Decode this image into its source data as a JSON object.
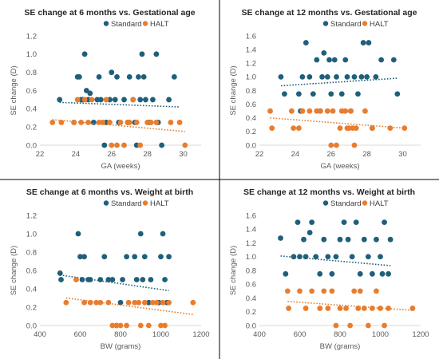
{
  "colors": {
    "standard": "#1f5f7a",
    "halt": "#e87d2f",
    "axis": "#d9d9d9",
    "divider": "#000000"
  },
  "chart_data": [
    {
      "type": "scatter",
      "title": "SE change at 6 months vs. Gestational age",
      "xlabel": "GA (weeks)",
      "ylabel": "SE change (D)",
      "xlim": [
        22,
        31
      ],
      "ylim": [
        0,
        1.2
      ],
      "xticks": [
        "22",
        "24",
        "26",
        "28",
        "30"
      ],
      "yticks": [
        "0.0",
        "0.2",
        "0.4",
        "0.6",
        "0.8",
        "1.0",
        "1.2"
      ],
      "grid": false,
      "legend": "top",
      "series": [
        {
          "name": "Standard",
          "points": [
            [
              23.1,
              0.5
            ],
            [
              23.9,
              0.25
            ],
            [
              24.1,
              0.75
            ],
            [
              24.2,
              0.75
            ],
            [
              24.3,
              0.5
            ],
            [
              24.4,
              0.5
            ],
            [
              24.5,
              1.0
            ],
            [
              24.6,
              0.6
            ],
            [
              24.7,
              0.5
            ],
            [
              24.8,
              0.57
            ],
            [
              25.0,
              0.25
            ],
            [
              25.2,
              0.5
            ],
            [
              25.3,
              0.75
            ],
            [
              25.4,
              0.5
            ],
            [
              25.6,
              0.0
            ],
            [
              25.7,
              0.25
            ],
            [
              25.9,
              0.5
            ],
            [
              26.0,
              0.8
            ],
            [
              26.2,
              0.5
            ],
            [
              26.3,
              0.75
            ],
            [
              26.4,
              0.25
            ],
            [
              26.7,
              0.5
            ],
            [
              26.9,
              0.25
            ],
            [
              27.0,
              0.75
            ],
            [
              27.2,
              0.5
            ],
            [
              27.3,
              0.25
            ],
            [
              27.4,
              0.0
            ],
            [
              27.5,
              0.75
            ],
            [
              27.6,
              0.5
            ],
            [
              27.7,
              1.0
            ],
            [
              27.8,
              0.75
            ],
            [
              27.9,
              0.5
            ],
            [
              28.1,
              0.25
            ],
            [
              28.3,
              0.5
            ],
            [
              28.5,
              1.0
            ],
            [
              28.6,
              0.25
            ],
            [
              28.8,
              0.0
            ],
            [
              29.2,
              0.5
            ],
            [
              29.5,
              0.75
            ]
          ],
          "trend": [
            [
              23.1,
              0.47
            ],
            [
              29.8,
              0.42
            ]
          ]
        },
        {
          "name": "HALT",
          "points": [
            [
              22.7,
              0.25
            ],
            [
              23.2,
              0.25
            ],
            [
              23.9,
              0.25
            ],
            [
              24.1,
              0.5
            ],
            [
              24.3,
              0.25
            ],
            [
              24.5,
              0.5
            ],
            [
              24.7,
              0.25
            ],
            [
              24.9,
              0.5
            ],
            [
              25.3,
              0.25
            ],
            [
              25.5,
              0.25
            ],
            [
              25.7,
              0.5
            ],
            [
              25.9,
              0.25
            ],
            [
              26.0,
              0.0
            ],
            [
              26.3,
              0.0
            ],
            [
              26.5,
              0.25
            ],
            [
              26.7,
              0.0
            ],
            [
              26.9,
              0.25
            ],
            [
              27.0,
              0.25
            ],
            [
              27.2,
              0.5
            ],
            [
              27.4,
              0.25
            ],
            [
              27.6,
              0.0
            ],
            [
              28.0,
              0.25
            ],
            [
              28.2,
              0.25
            ],
            [
              28.5,
              0.25
            ],
            [
              29.3,
              0.25
            ],
            [
              29.8,
              0.25
            ],
            [
              30.1,
              0.0
            ]
          ],
          "trend": [
            [
              22.7,
              0.28
            ],
            [
              30.1,
              0.15
            ]
          ]
        }
      ]
    },
    {
      "type": "scatter",
      "title": "SE change at 12 months vs. Gestational age",
      "xlabel": "GA (weeks)",
      "ylabel": "SE change (D)",
      "xlim": [
        22,
        31
      ],
      "ylim": [
        0,
        1.6
      ],
      "xticks": [
        "22",
        "24",
        "26",
        "28",
        "30"
      ],
      "yticks": [
        "0.0",
        "0.2",
        "0.4",
        "0.6",
        "0.8",
        "1.0",
        "1.2",
        "1.4",
        "1.6"
      ],
      "grid": false,
      "legend": "top",
      "series": [
        {
          "name": "Standard",
          "points": [
            [
              23.2,
              1.0
            ],
            [
              23.4,
              0.75
            ],
            [
              24.2,
              0.75
            ],
            [
              24.3,
              0.5
            ],
            [
              24.4,
              1.0
            ],
            [
              24.6,
              1.5
            ],
            [
              24.8,
              1.0
            ],
            [
              25.0,
              0.75
            ],
            [
              25.2,
              1.25
            ],
            [
              25.4,
              0.5
            ],
            [
              25.5,
              1.0
            ],
            [
              25.6,
              1.35
            ],
            [
              25.8,
              1.0
            ],
            [
              25.9,
              1.25
            ],
            [
              26.0,
              0.75
            ],
            [
              26.2,
              1.25
            ],
            [
              26.3,
              1.0
            ],
            [
              26.6,
              0.75
            ],
            [
              26.8,
              1.25
            ],
            [
              26.9,
              1.0
            ],
            [
              27.1,
              0.5
            ],
            [
              27.3,
              1.0
            ],
            [
              27.5,
              0.75
            ],
            [
              27.7,
              1.0
            ],
            [
              27.8,
              1.5
            ],
            [
              28.0,
              1.0
            ],
            [
              28.1,
              1.5
            ],
            [
              28.3,
              0.25
            ],
            [
              28.5,
              1.0
            ],
            [
              28.8,
              1.25
            ],
            [
              29.5,
              1.25
            ],
            [
              29.7,
              0.75
            ]
          ],
          "trend": [
            [
              23.2,
              0.87
            ],
            [
              29.7,
              0.98
            ]
          ]
        },
        {
          "name": "HALT",
          "points": [
            [
              22.6,
              0.5
            ],
            [
              22.7,
              0.25
            ],
            [
              23.8,
              0.5
            ],
            [
              23.9,
              0.25
            ],
            [
              24.2,
              0.25
            ],
            [
              24.4,
              0.5
            ],
            [
              24.8,
              0.5
            ],
            [
              25.2,
              0.5
            ],
            [
              25.4,
              0.5
            ],
            [
              25.8,
              0.5
            ],
            [
              26.0,
              0.0
            ],
            [
              26.1,
              0.5
            ],
            [
              26.3,
              0.0
            ],
            [
              26.5,
              0.25
            ],
            [
              26.6,
              0.5
            ],
            [
              26.8,
              0.5
            ],
            [
              26.9,
              0.25
            ],
            [
              27.0,
              0.25
            ],
            [
              27.1,
              0.5
            ],
            [
              27.2,
              0.25
            ],
            [
              27.3,
              0.0
            ],
            [
              27.4,
              0.25
            ],
            [
              27.9,
              0.5
            ],
            [
              28.3,
              0.25
            ],
            [
              29.3,
              0.25
            ],
            [
              30.1,
              0.25
            ]
          ],
          "trend": [
            [
              22.6,
              0.4
            ],
            [
              30.1,
              0.25
            ]
          ]
        }
      ]
    },
    {
      "type": "scatter",
      "title": "SE change at 6 months vs. Weight at birth",
      "xlabel": "BW (grams)",
      "ylabel": "SE change (D)",
      "xlim": [
        400,
        1200
      ],
      "ylim": [
        0,
        1.2
      ],
      "xticks": [
        "400",
        "600",
        "800",
        "1000",
        "1200"
      ],
      "yticks": [
        "0.0",
        "0.2",
        "0.4",
        "0.6",
        "0.8",
        "1.0",
        "1.2"
      ],
      "grid": false,
      "legend": "top",
      "series": [
        {
          "name": "Standard",
          "points": [
            [
              500,
              0.57
            ],
            [
              505,
              0.5
            ],
            [
              590,
              1.0
            ],
            [
              600,
              0.75
            ],
            [
              610,
              0.5
            ],
            [
              620,
              0.75
            ],
            [
              640,
              0.5
            ],
            [
              650,
              0.5
            ],
            [
              700,
              0.5
            ],
            [
              720,
              0.75
            ],
            [
              740,
              0.5
            ],
            [
              760,
              0.5
            ],
            [
              780,
              0.0
            ],
            [
              800,
              0.25
            ],
            [
              810,
              0.5
            ],
            [
              830,
              0.75
            ],
            [
              870,
              0.75
            ],
            [
              880,
              0.5
            ],
            [
              900,
              1.0
            ],
            [
              910,
              0.5
            ],
            [
              920,
              0.75
            ],
            [
              940,
              0.25
            ],
            [
              950,
              0.5
            ],
            [
              990,
              0.25
            ],
            [
              1000,
              0.75
            ],
            [
              1010,
              1.0
            ],
            [
              1020,
              0.5
            ],
            [
              1030,
              0.25
            ],
            [
              1040,
              0.75
            ]
          ],
          "trend": [
            [
              500,
              0.55
            ],
            [
              1040,
              0.38
            ]
          ]
        },
        {
          "name": "HALT",
          "points": [
            [
              530,
              0.25
            ],
            [
              580,
              0.5
            ],
            [
              620,
              0.25
            ],
            [
              650,
              0.25
            ],
            [
              680,
              0.25
            ],
            [
              700,
              0.25
            ],
            [
              740,
              0.25
            ],
            [
              760,
              0.0
            ],
            [
              780,
              0.0
            ],
            [
              800,
              0.0
            ],
            [
              830,
              0.0
            ],
            [
              840,
              0.25
            ],
            [
              870,
              0.25
            ],
            [
              890,
              0.25
            ],
            [
              900,
              0.0
            ],
            [
              920,
              0.25
            ],
            [
              940,
              0.0
            ],
            [
              960,
              0.25
            ],
            [
              980,
              0.25
            ],
            [
              1000,
              0.0
            ],
            [
              1010,
              0.25
            ],
            [
              1020,
              0.0
            ],
            [
              1040,
              0.25
            ],
            [
              1160,
              0.25
            ]
          ],
          "trend": [
            [
              530,
              0.3
            ],
            [
              1160,
              0.12
            ]
          ]
        }
      ]
    },
    {
      "type": "scatter",
      "title": "SE change at 12 months vs. Weight at birth",
      "xlabel": "BW (grams)",
      "ylabel": "SE change (D)",
      "xlim": [
        400,
        1200
      ],
      "ylim": [
        0,
        1.6
      ],
      "xticks": [
        "400",
        "600",
        "800",
        "1000",
        "1200"
      ],
      "yticks": [
        "0.0",
        "0.2",
        "0.4",
        "0.6",
        "0.8",
        "1.0",
        "1.2",
        "1.4",
        "1.6"
      ],
      "grid": false,
      "legend": "top",
      "series": [
        {
          "name": "Standard",
          "points": [
            [
              505,
              1.27
            ],
            [
              530,
              0.75
            ],
            [
              570,
              1.0
            ],
            [
              590,
              1.5
            ],
            [
              600,
              1.0
            ],
            [
              620,
              1.25
            ],
            [
              630,
              1.0
            ],
            [
              650,
              1.35
            ],
            [
              660,
              1.5
            ],
            [
              680,
              1.0
            ],
            [
              700,
              0.75
            ],
            [
              720,
              1.25
            ],
            [
              740,
              1.0
            ],
            [
              760,
              0.75
            ],
            [
              780,
              1.0
            ],
            [
              800,
              1.25
            ],
            [
              820,
              1.5
            ],
            [
              840,
              1.25
            ],
            [
              860,
              1.0
            ],
            [
              880,
              1.5
            ],
            [
              900,
              0.75
            ],
            [
              920,
              1.25
            ],
            [
              940,
              1.0
            ],
            [
              960,
              0.75
            ],
            [
              980,
              1.25
            ],
            [
              1000,
              1.0
            ],
            [
              1010,
              0.75
            ],
            [
              1020,
              1.5
            ],
            [
              1040,
              0.75
            ],
            [
              1050,
              1.25
            ]
          ],
          "trend": [
            [
              505,
              1.01
            ],
            [
              1050,
              0.87
            ]
          ]
        },
        {
          "name": "HALT",
          "points": [
            [
              540,
              0.5
            ],
            [
              545,
              0.25
            ],
            [
              600,
              0.5
            ],
            [
              630,
              0.25
            ],
            [
              660,
              0.5
            ],
            [
              700,
              0.25
            ],
            [
              720,
              0.5
            ],
            [
              740,
              0.25
            ],
            [
              760,
              0.5
            ],
            [
              780,
              0.0
            ],
            [
              800,
              0.25
            ],
            [
              830,
              0.25
            ],
            [
              850,
              0.0
            ],
            [
              870,
              0.5
            ],
            [
              890,
              0.25
            ],
            [
              900,
              0.5
            ],
            [
              920,
              0.25
            ],
            [
              940,
              0.0
            ],
            [
              960,
              0.25
            ],
            [
              980,
              0.5
            ],
            [
              1000,
              0.25
            ],
            [
              1020,
              0.0
            ],
            [
              1040,
              0.25
            ],
            [
              1160,
              0.25
            ]
          ],
          "trend": [
            [
              540,
              0.35
            ],
            [
              1160,
              0.22
            ]
          ]
        }
      ]
    }
  ]
}
